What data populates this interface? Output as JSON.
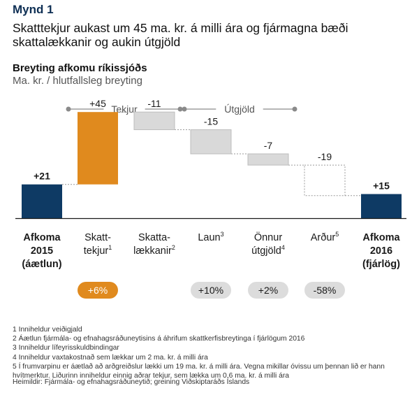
{
  "figure_label": "Mynd 1",
  "headline": "Skatttekjur aukast um 45 ma. kr. á milli ára og fjármagna bæði skattalækkanir og aukin útgjöld",
  "chart_data": {
    "type": "waterfall",
    "title": "Breyting afkomu ríkissjóðs",
    "subtitle": "Ma. kr. / hlutfallsleg breyting",
    "group_labels": {
      "revenue": "Tekjur",
      "expenditure": "Útgjöld"
    },
    "colors": {
      "total": "#0e3a64",
      "increase": "#e08a1e",
      "decrease": "#d9d9d9",
      "ghost": "#ffffff",
      "pill": "#dcdcdc"
    },
    "steps": [
      {
        "kind": "total",
        "value": 21,
        "label_text": "+21",
        "category_lines": [
          "Afkoma",
          "2015",
          "(áætlun)"
        ],
        "bold": true,
        "pct": null
      },
      {
        "kind": "increase",
        "value": 45,
        "label_text": "+45",
        "category_lines": [
          "Skatt-",
          "tekjur"
        ],
        "sup": "1",
        "bold": false,
        "pct": "+6%"
      },
      {
        "kind": "decrease",
        "value": -11,
        "label_text": "-11",
        "category_lines": [
          "Skatta-",
          "lækkanir"
        ],
        "sup": "2",
        "bold": false,
        "pct": null
      },
      {
        "kind": "decrease",
        "value": -15,
        "label_text": "-15",
        "category_lines": [
          "Laun"
        ],
        "sup": "3",
        "bold": false,
        "pct": "+10%"
      },
      {
        "kind": "decrease",
        "value": -7,
        "label_text": "-7",
        "category_lines": [
          "Önnur",
          "útgjöld"
        ],
        "sup": "4",
        "bold": false,
        "pct": "+2%"
      },
      {
        "kind": "ghost",
        "value": -19,
        "label_text": "-19",
        "category_lines": [
          "Arður"
        ],
        "sup": "5",
        "bold": false,
        "pct": "-58%"
      },
      {
        "kind": "total",
        "value": 15,
        "label_text": "+15",
        "category_lines": [
          "Afkoma",
          "2016",
          "(fjárlög)"
        ],
        "bold": true,
        "pct": null
      }
    ]
  },
  "footnotes": [
    "1 Inniheldur veiðigjald",
    "2 Áætlun fjármála- og efnahagsráðuneytisins á áhrifum skattkerfisbreytinga í fjárlögum 2016",
    "3 Inniheldur lífeyrisskuldbindingar",
    "4 Inniheldur vaxtakostnað sem lækkar um 2 ma. kr. á milli ára",
    "5 Í frumvarpinu er áætlað að arðgreiðslur lækki um 19 ma. kr. á milli ára. Vegna mikillar óvissu um þennan lið er hann hvítmerktur. Liðurinn inniheldur einnig aðrar tekjur, sem lækka um 0,6 ma. kr. á milli ára"
  ],
  "source": "Heimildir: Fjármála- og efnahagsráðuneytið; greining Viðskiptaráðs Íslands"
}
